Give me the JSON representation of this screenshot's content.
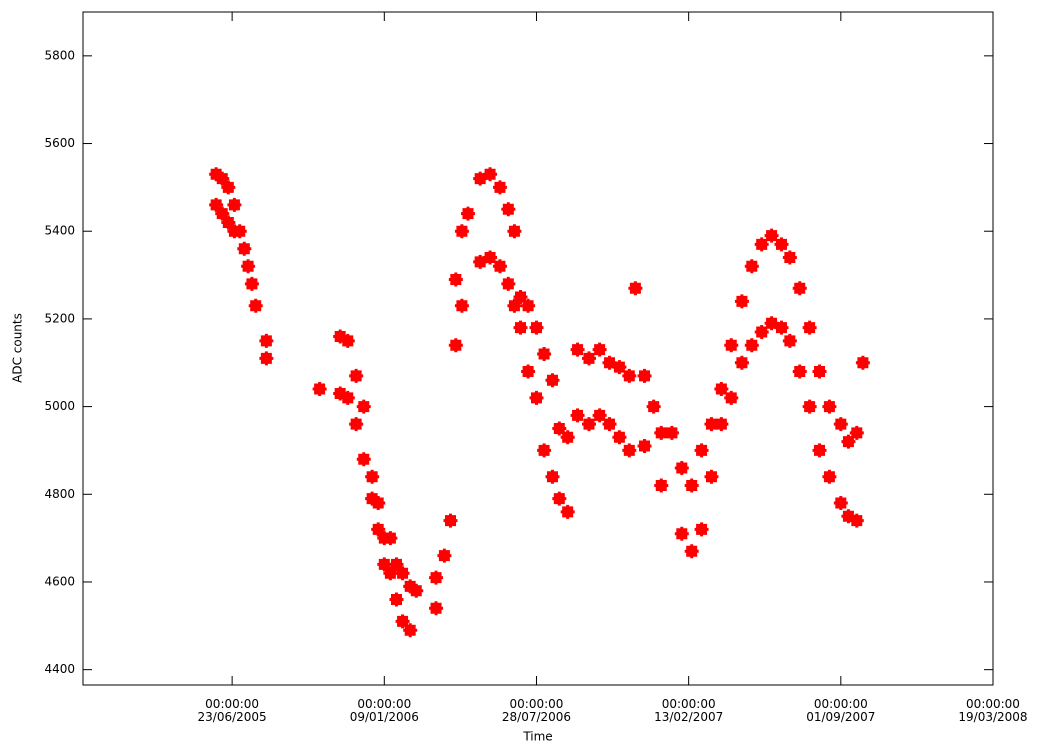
{
  "chart_data": {
    "type": "scatter",
    "x_label": "Time",
    "y_label": "ADC counts",
    "xlim": [
      "2004-12-09",
      "2008-03-19"
    ],
    "xticks": [
      {
        "value": "2005-06-23",
        "label": "00:00:00\n23/06/2005"
      },
      {
        "value": "2006-01-09",
        "label": "00:00:00\n09/01/2006"
      },
      {
        "value": "2006-07-28",
        "label": "00:00:00\n28/07/2006"
      },
      {
        "value": "2007-02-13",
        "label": "00:00:00\n13/02/2007"
      },
      {
        "value": "2007-09-01",
        "label": "00:00:00\n01/09/2007"
      },
      {
        "value": "2008-03-19",
        "label": "00:00:00\n19/03/2008"
      }
    ],
    "ylim": [
      4365,
      5900
    ],
    "yticks": [
      4400,
      4600,
      4800,
      5000,
      5200,
      5400,
      5600,
      5800
    ],
    "marker": "plus",
    "series": [
      {
        "color": "#ff0000",
        "x": [
          "2005-06-02",
          "2005-06-02",
          "2005-06-10",
          "2005-06-10",
          "2005-06-18",
          "2005-06-18",
          "2005-06-26",
          "2005-06-26",
          "2005-07-03",
          "2005-07-09",
          "2005-07-14",
          "2005-07-19",
          "2005-07-24",
          "2005-08-07",
          "2005-08-07",
          "2005-10-16",
          "2005-11-12",
          "2005-11-12",
          "2005-11-22",
          "2005-11-22",
          "2005-12-03",
          "2005-12-03",
          "2005-12-13",
          "2005-12-13",
          "2005-12-24",
          "2005-12-24",
          "2006-01-01",
          "2006-01-01",
          "2006-01-09",
          "2006-01-09",
          "2006-01-17",
          "2006-01-17",
          "2006-01-25",
          "2006-01-25",
          "2006-02-02",
          "2006-02-02",
          "2006-02-12",
          "2006-02-12",
          "2006-02-20",
          "2006-03-18",
          "2006-03-18",
          "2006-03-29",
          "2006-04-06",
          "2006-04-13",
          "2006-04-13",
          "2006-04-21",
          "2006-04-21",
          "2006-04-29",
          "2006-05-15",
          "2006-05-15",
          "2006-05-28",
          "2006-05-28",
          "2006-06-10",
          "2006-06-10",
          "2006-06-21",
          "2006-06-21",
          "2006-06-29",
          "2006-06-29",
          "2006-07-07",
          "2006-07-07",
          "2006-07-17",
          "2006-07-17",
          "2006-07-28",
          "2006-07-28",
          "2006-08-07",
          "2006-08-07",
          "2006-08-18",
          "2006-08-18",
          "2006-08-27",
          "2006-08-27",
          "2006-09-07",
          "2006-09-07",
          "2006-09-20",
          "2006-09-20",
          "2006-10-05",
          "2006-10-05",
          "2006-10-19",
          "2006-10-19",
          "2006-11-01",
          "2006-11-01",
          "2006-11-14",
          "2006-11-14",
          "2006-11-27",
          "2006-11-27",
          "2006-12-05",
          "2006-12-17",
          "2006-12-17",
          "2006-12-29",
          "2007-01-08",
          "2007-01-08",
          "2007-01-22",
          "2007-02-04",
          "2007-02-04",
          "2007-02-17",
          "2007-02-17",
          "2007-03-02",
          "2007-03-02",
          "2007-03-15",
          "2007-03-15",
          "2007-03-28",
          "2007-03-28",
          "2007-04-10",
          "2007-04-10",
          "2007-04-24",
          "2007-04-24",
          "2007-05-07",
          "2007-05-07",
          "2007-05-20",
          "2007-05-20",
          "2007-06-02",
          "2007-06-02",
          "2007-06-15",
          "2007-06-15",
          "2007-06-26",
          "2007-06-26",
          "2007-07-09",
          "2007-07-09",
          "2007-07-22",
          "2007-07-22",
          "2007-08-04",
          "2007-08-04",
          "2007-08-17",
          "2007-08-17",
          "2007-09-01",
          "2007-09-01",
          "2007-09-11",
          "2007-09-11",
          "2007-09-22",
          "2007-09-22",
          "2007-09-30"
        ],
        "values": [
          5530,
          5460,
          5520,
          5440,
          5500,
          5420,
          5460,
          5400,
          5400,
          5360,
          5320,
          5280,
          5230,
          5150,
          5110,
          5040,
          5160,
          5030,
          5150,
          5020,
          5070,
          4960,
          5000,
          4880,
          4840,
          4790,
          4780,
          4720,
          4700,
          4640,
          4700,
          4620,
          4640,
          4560,
          4620,
          4510,
          4590,
          4490,
          4580,
          4610,
          4540,
          4660,
          4740,
          5290,
          5140,
          5400,
          5230,
          5440,
          5520,
          5330,
          5530,
          5340,
          5500,
          5320,
          5450,
          5280,
          5400,
          5230,
          5250,
          5180,
          5230,
          5080,
          5180,
          5020,
          5120,
          4900,
          5060,
          4840,
          4950,
          4790,
          4930,
          4760,
          5130,
          4980,
          5110,
          4960,
          5130,
          4980,
          5100,
          4960,
          5090,
          4930,
          5070,
          4900,
          5270,
          5070,
          4910,
          5000,
          4940,
          4820,
          4940,
          4860,
          4710,
          4820,
          4670,
          4900,
          4720,
          4960,
          4840,
          5040,
          4960,
          5140,
          5020,
          5240,
          5100,
          5320,
          5140,
          5370,
          5170,
          5390,
          5190,
          5370,
          5180,
          5340,
          5150,
          5270,
          5080,
          5180,
          5000,
          5080,
          4900,
          5000,
          4840,
          4960,
          4780,
          4920,
          4750,
          4940,
          4740,
          5100
        ]
      }
    ]
  }
}
